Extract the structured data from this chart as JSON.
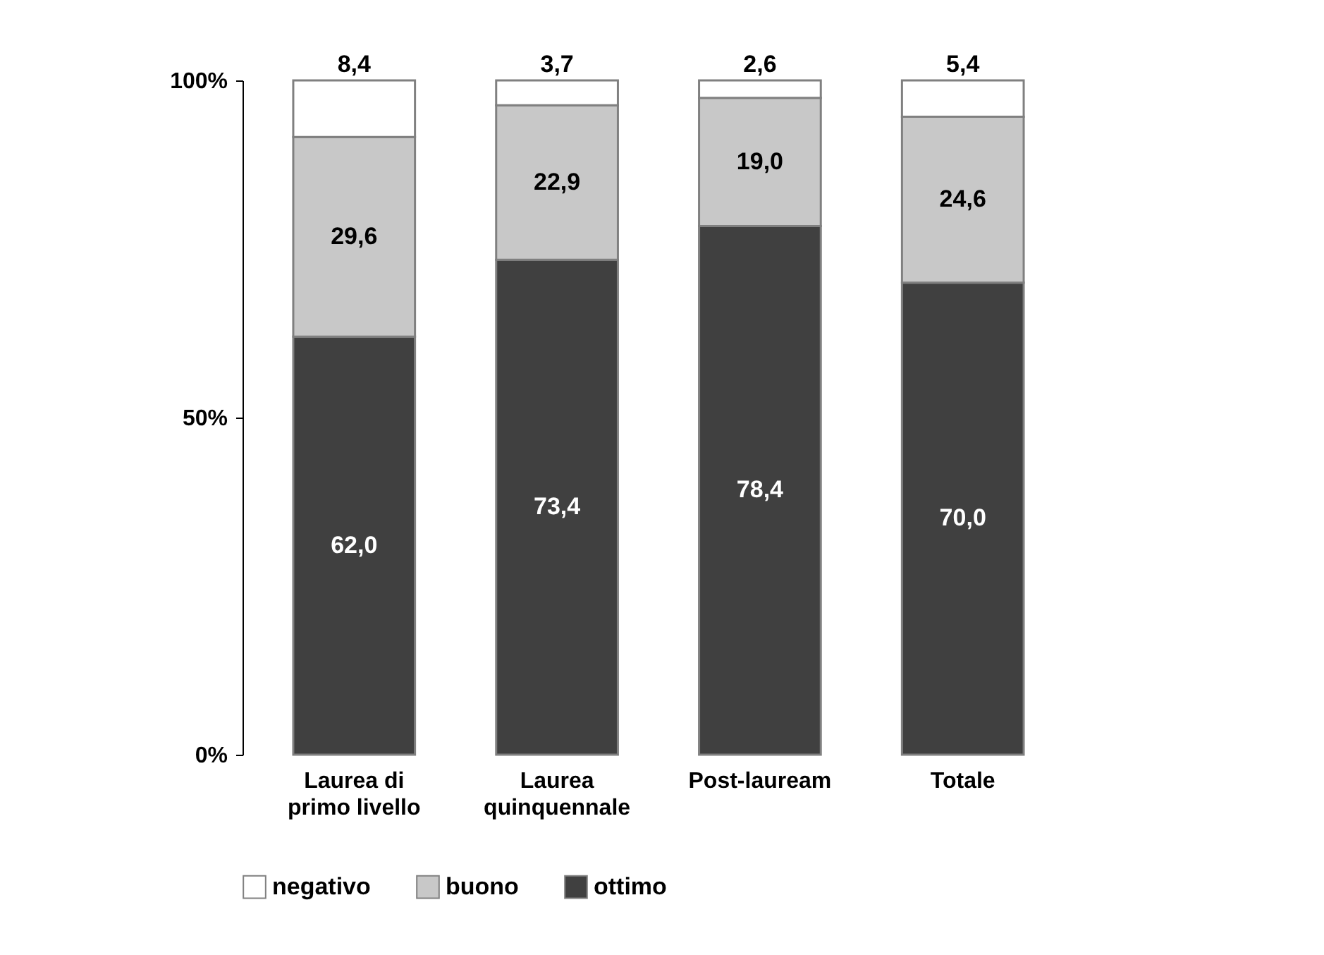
{
  "chart_data": {
    "type": "bar",
    "stacked": true,
    "categories": [
      "Laurea di\nprimo livello",
      "Laurea\nquinquennale",
      "Post-lauream",
      "Totale"
    ],
    "series": [
      {
        "name": "ottimo",
        "color": "#404040",
        "values": [
          62.0,
          73.4,
          78.4,
          70.0
        ],
        "value_labels": [
          "62,0",
          "73,4",
          "78,4",
          "70,0"
        ]
      },
      {
        "name": "buono",
        "color": "#c8c8c8",
        "values": [
          29.6,
          22.9,
          19.0,
          24.6
        ],
        "value_labels": [
          "29,6",
          "22,9",
          "19,0",
          "24,6"
        ]
      },
      {
        "name": "negativo",
        "color": "#ffffff",
        "values": [
          8.4,
          3.7,
          2.6,
          5.4
        ],
        "value_labels": [
          "8,4",
          "3,7",
          "2,6",
          "5,4"
        ]
      }
    ],
    "ylim": [
      0,
      100
    ],
    "yticks": [
      {
        "value": 0,
        "label": "0%"
      },
      {
        "value": 50,
        "label": "50%"
      },
      {
        "value": 100,
        "label": "100%"
      }
    ],
    "grid": false,
    "legend": "bottom"
  }
}
